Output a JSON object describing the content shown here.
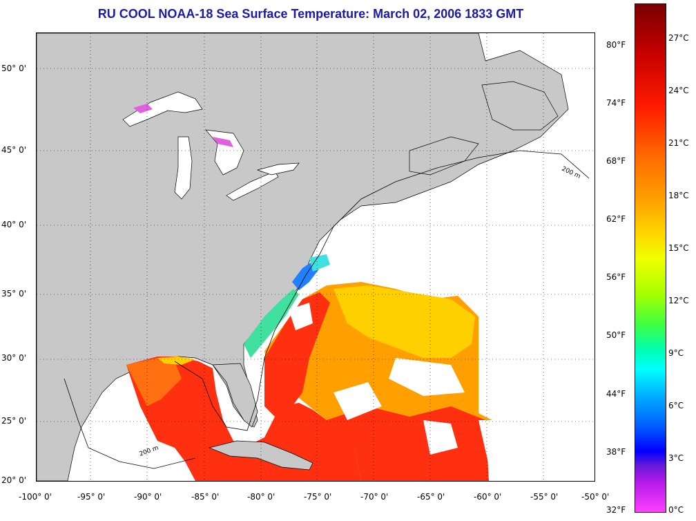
{
  "title": "RU COOL  NOAA-18  Sea Surface Temperature:  March 02, 2006 1833 GMT",
  "map": {
    "lat_labels": [
      "50° 0'",
      "45° 0'",
      "40° 0'",
      "35° 0'",
      "30° 0'",
      "25° 0'",
      "20° 0'"
    ],
    "lon_labels": [
      "-100° 0'",
      "-95° 0'",
      "-90° 0'",
      "-85° 0'",
      "-80° 0'",
      "-75° 0'",
      "-70° 0'",
      "-65° 0'",
      "-60° 0'",
      "-55° 0'",
      "-50° 0'"
    ],
    "isobath_label": "200 m",
    "land_color": "#c8c8c8",
    "ocean_nodata_color": "#ffffff"
  },
  "colorbar": {
    "fahrenheit_labels": [
      "80°F",
      "74°F",
      "68°F",
      "62°F",
      "56°F",
      "50°F",
      "44°F",
      "38°F",
      "32°F"
    ],
    "celsius_labels": [
      "27°C",
      "24°C",
      "21°C",
      "18°C",
      "15°C",
      "12°C",
      "9°C",
      "6°C",
      "3°C",
      "0°C"
    ]
  }
}
